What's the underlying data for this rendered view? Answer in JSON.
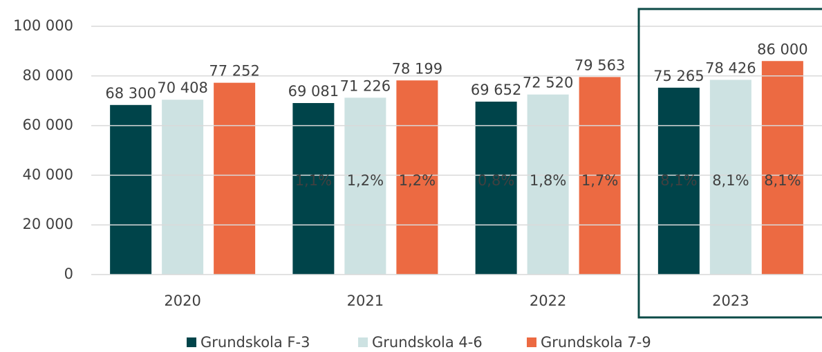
{
  "chart_data": {
    "type": "bar",
    "categories": [
      "2020",
      "2021",
      "2022",
      "2023"
    ],
    "series": [
      {
        "name": "Grundskola F-3",
        "color": "#00444a",
        "values": [
          68300,
          69081,
          69652,
          75265
        ],
        "value_labels": [
          "68 300",
          "69 081",
          "69 652",
          "75 265"
        ],
        "growth_labels": [
          null,
          "1,1%",
          "0,8%",
          "8,1%"
        ]
      },
      {
        "name": "Grundskola 4-6",
        "color": "#cde2e2",
        "values": [
          70408,
          71226,
          72520,
          78426
        ],
        "value_labels": [
          "70 408",
          "71 226",
          "72 520",
          "78 426"
        ],
        "growth_labels": [
          null,
          "1,2%",
          "1,8%",
          "8,1%"
        ]
      },
      {
        "name": "Grundskola 7-9",
        "color": "#ec6a42",
        "values": [
          77252,
          78199,
          79563,
          86000
        ],
        "value_labels": [
          "77 252",
          "78 199",
          "79 563",
          "86 000"
        ],
        "growth_labels": [
          null,
          "1,2%",
          "1,7%",
          "8,1%"
        ]
      }
    ],
    "ylim": [
      0,
      100000
    ],
    "yticks": [
      0,
      {
        "value": 20000,
        "label": "20 000"
      },
      {
        "value": 40000,
        "label": "40 000"
      },
      {
        "value": 60000,
        "label": "60 000"
      },
      {
        "value": 80000,
        "label": "80 000"
      },
      {
        "value": 100000,
        "label": "100 000"
      }
    ],
    "grid": true,
    "legend": "bottom"
  }
}
